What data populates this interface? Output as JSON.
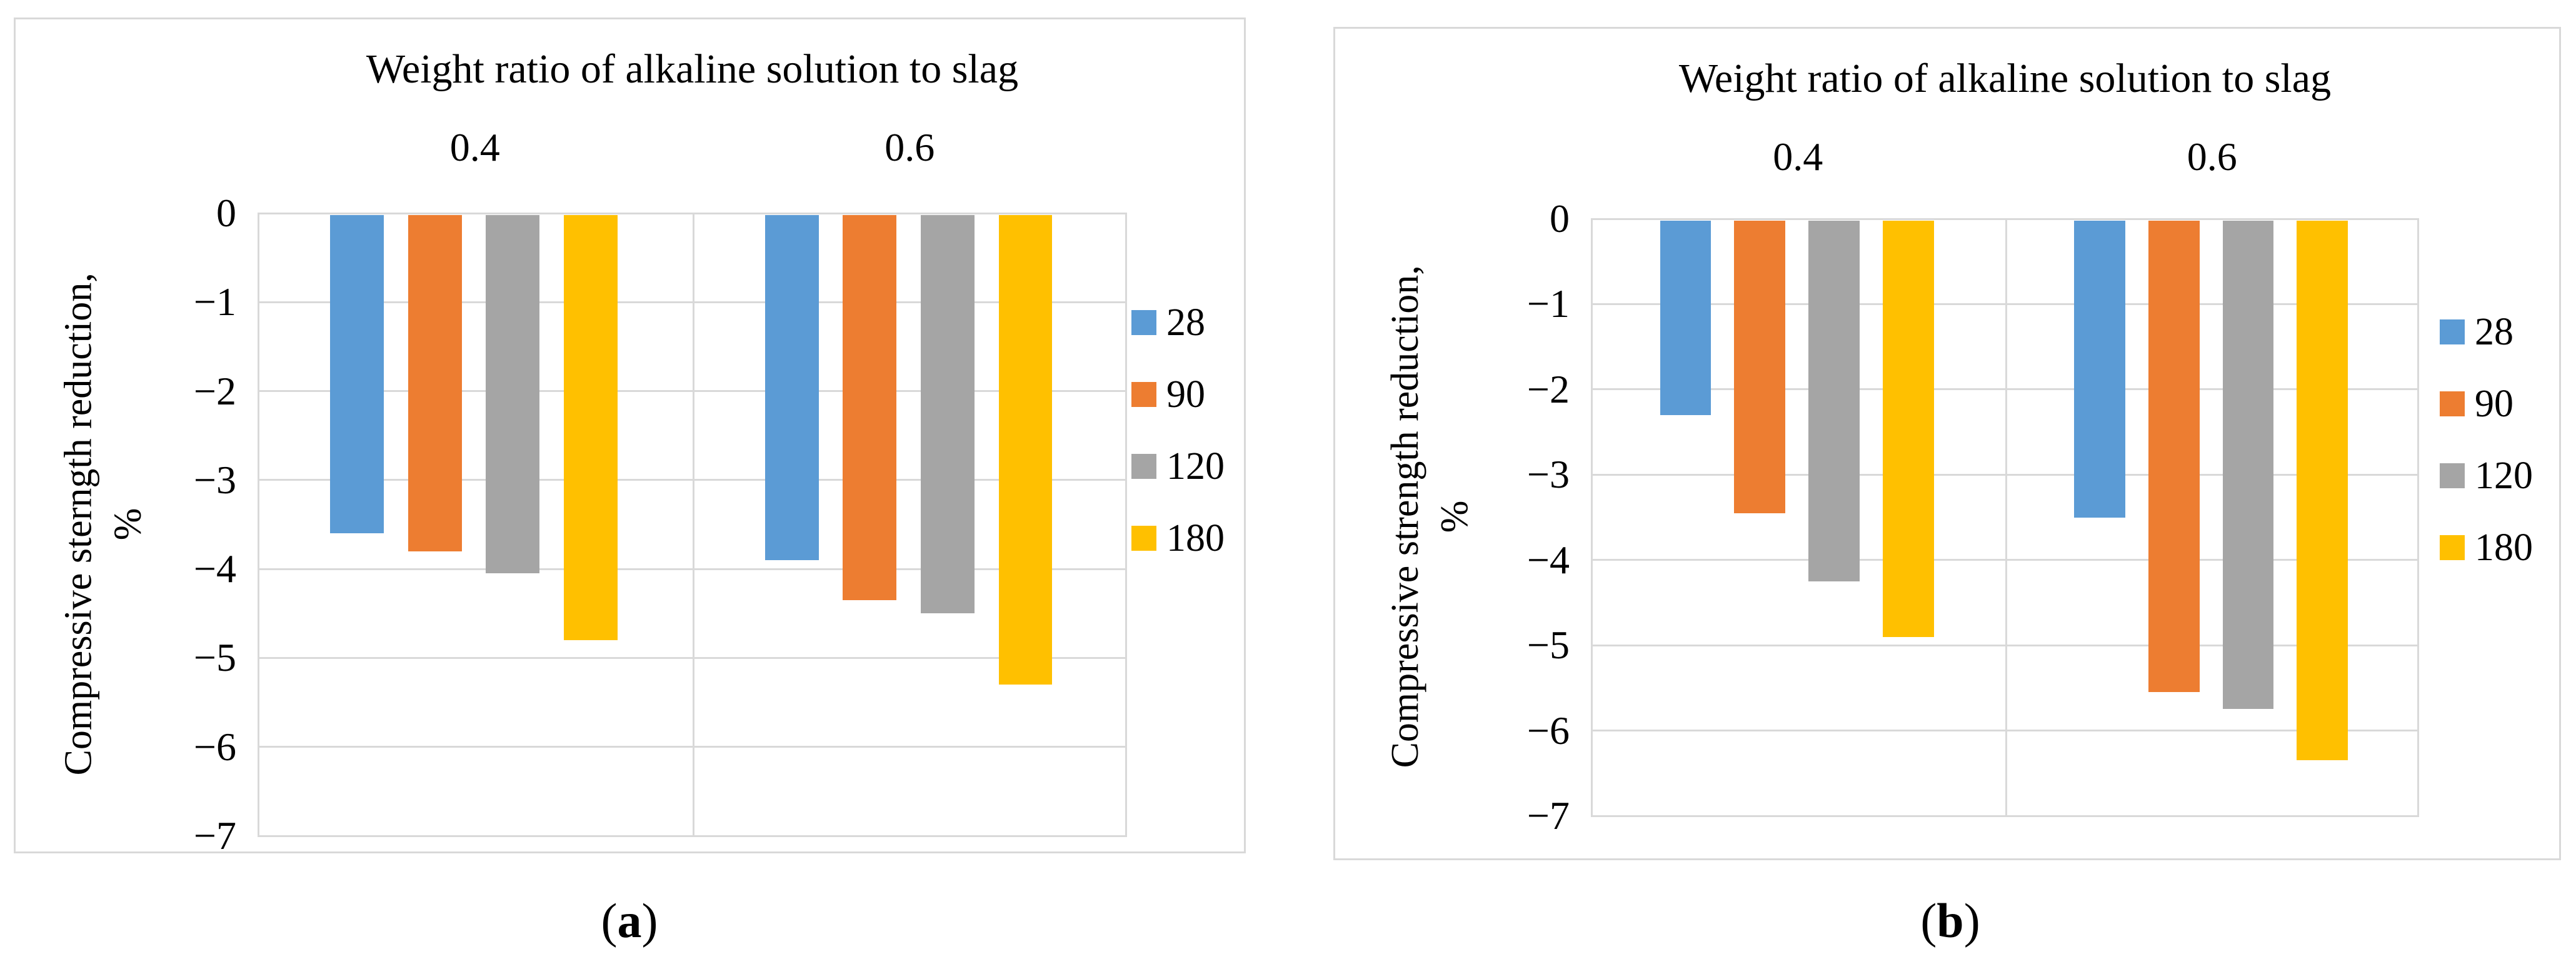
{
  "figure": {
    "captions": [
      {
        "open": "(",
        "letter": "a",
        "close": ")"
      },
      {
        "open": "(",
        "letter": "b",
        "close": ")"
      }
    ]
  },
  "colors": {
    "series_blue": "#5B9BD5",
    "series_orange": "#ED7D31",
    "series_gray": "#A5A5A5",
    "series_yellow": "#FFC000",
    "gridline": "#D9D9D9",
    "panel_border": "#D9D9D9",
    "text": "#000000"
  },
  "chart_data": [
    {
      "type": "bar",
      "panel": "a",
      "title": "Weight ratio of alkaline solution to slag",
      "title_position": "top",
      "categories": [
        "0.4",
        "0.6"
      ],
      "series": [
        {
          "name": "28",
          "color": "#5B9BD5",
          "values": [
            -3.6,
            -3.9
          ]
        },
        {
          "name": "90",
          "color": "#ED7D31",
          "values": [
            -3.8,
            -4.35
          ]
        },
        {
          "name": "120",
          "color": "#A5A5A5",
          "values": [
            -4.05,
            -4.5
          ]
        },
        {
          "name": "180",
          "color": "#FFC000",
          "values": [
            -4.8,
            -5.3
          ]
        }
      ],
      "ylabel_line1": "Compressive sterngth reduction,",
      "ylabel_line2": "%",
      "ylim": [
        -7,
        0
      ],
      "y_ticks": [
        "0",
        "−1",
        "−2",
        "−3",
        "−4",
        "−5",
        "−6",
        "−7"
      ],
      "grid": true,
      "legend_position": "right",
      "legend": [
        "28",
        "90",
        "120",
        "180"
      ]
    },
    {
      "type": "bar",
      "panel": "b",
      "title": "Weight ratio of alkaline solution to slag",
      "title_position": "top",
      "categories": [
        "0.4",
        "0.6"
      ],
      "series": [
        {
          "name": "28",
          "color": "#5B9BD5",
          "values": [
            -2.3,
            -3.5
          ]
        },
        {
          "name": "90",
          "color": "#ED7D31",
          "values": [
            -3.45,
            -5.55
          ]
        },
        {
          "name": "120",
          "color": "#A5A5A5",
          "values": [
            -4.25,
            -5.75
          ]
        },
        {
          "name": "180",
          "color": "#FFC000",
          "values": [
            -4.9,
            -6.35
          ]
        }
      ],
      "ylabel_line1": "Compressive strength reduction,",
      "ylabel_line2": "%",
      "ylim": [
        -7,
        0
      ],
      "y_ticks": [
        "0",
        "−1",
        "−2",
        "−3",
        "−4",
        "−5",
        "−6",
        "−7"
      ],
      "grid": true,
      "legend_position": "right",
      "legend": [
        "28",
        "90",
        "120",
        "180"
      ]
    }
  ]
}
